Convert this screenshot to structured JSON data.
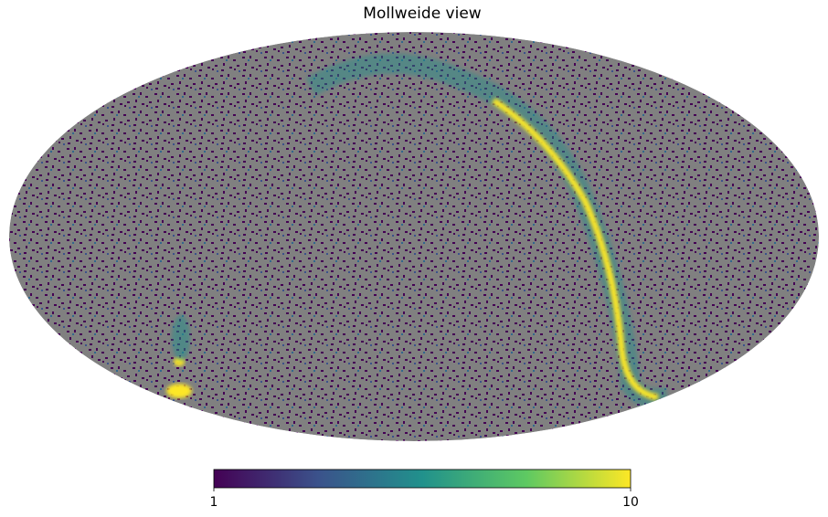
{
  "chart_data": {
    "type": "map",
    "title": "Mollweide view",
    "colorbar": {
      "lim": [
        1,
        10
      ],
      "ticks": [
        1,
        10
      ]
    }
  }
}
